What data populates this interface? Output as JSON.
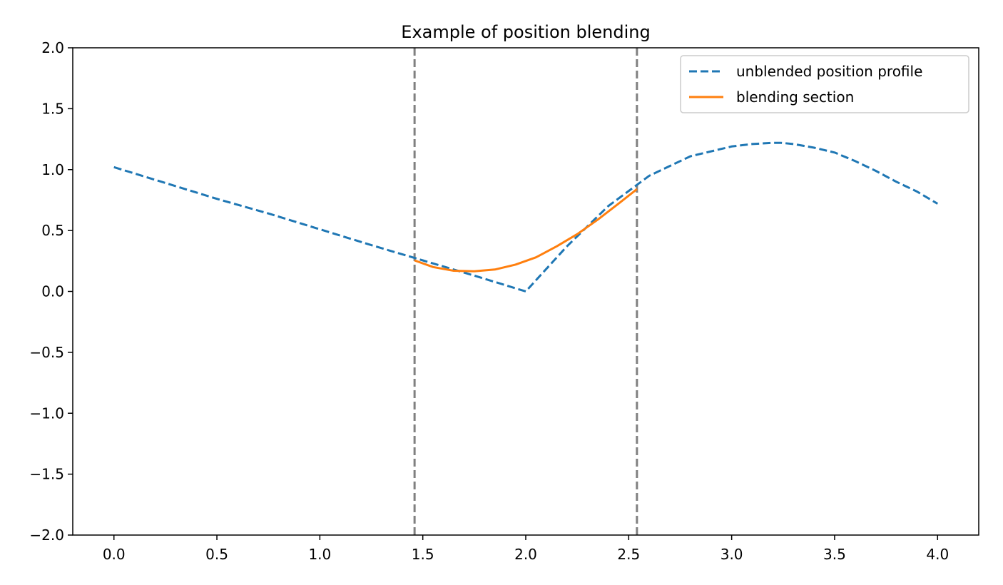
{
  "chart_data": {
    "type": "line",
    "title": "Example of position blending",
    "xlabel": "",
    "ylabel": "",
    "xlim": [
      -0.2,
      4.2
    ],
    "ylim": [
      -2.0,
      2.0
    ],
    "x_ticks": [
      0.0,
      0.5,
      1.0,
      1.5,
      2.0,
      2.5,
      3.0,
      3.5,
      4.0
    ],
    "y_ticks": [
      2.0,
      1.5,
      1.0,
      0.5,
      0.0,
      -0.5,
      -1.0,
      -1.5,
      -2.0
    ],
    "x_tick_labels": [
      "0.0",
      "0.5",
      "1.0",
      "1.5",
      "2.0",
      "2.5",
      "3.0",
      "3.5",
      "4.0"
    ],
    "y_tick_labels": [
      "2.0",
      "1.5",
      "1.0",
      "0.5",
      "0.0",
      "−0.5",
      "−1.0",
      "−1.5",
      "−2.0"
    ],
    "grid": false,
    "legend_position": "top-right",
    "vertical_lines": [
      {
        "x": 1.46,
        "color": "#808080",
        "style": "dashed"
      },
      {
        "x": 2.54,
        "color": "#808080",
        "style": "dashed"
      }
    ],
    "series": [
      {
        "name": "unblended position profile",
        "color": "#1f77b4",
        "style": "dashed",
        "x": [
          0.0,
          0.25,
          0.5,
          0.75,
          1.0,
          1.25,
          1.5,
          1.75,
          2.0,
          2.2,
          2.4,
          2.6,
          2.8,
          3.0,
          3.1,
          3.2,
          3.24,
          3.3,
          3.4,
          3.5,
          3.6,
          3.7,
          3.8,
          3.9,
          4.0
        ],
        "y": [
          1.02,
          0.89,
          0.76,
          0.64,
          0.51,
          0.38,
          0.255,
          0.13,
          0.0,
          0.37,
          0.7,
          0.95,
          1.11,
          1.19,
          1.21,
          1.22,
          1.22,
          1.21,
          1.18,
          1.14,
          1.07,
          0.99,
          0.9,
          0.82,
          0.72
        ]
      },
      {
        "name": "blending section",
        "color": "#ff7f0e",
        "style": "solid",
        "x": [
          1.46,
          1.55,
          1.65,
          1.75,
          1.85,
          1.95,
          2.05,
          2.15,
          2.25,
          2.35,
          2.45,
          2.54
        ],
        "y": [
          0.255,
          0.2,
          0.17,
          0.165,
          0.18,
          0.22,
          0.28,
          0.37,
          0.47,
          0.59,
          0.72,
          0.84
        ]
      }
    ]
  }
}
